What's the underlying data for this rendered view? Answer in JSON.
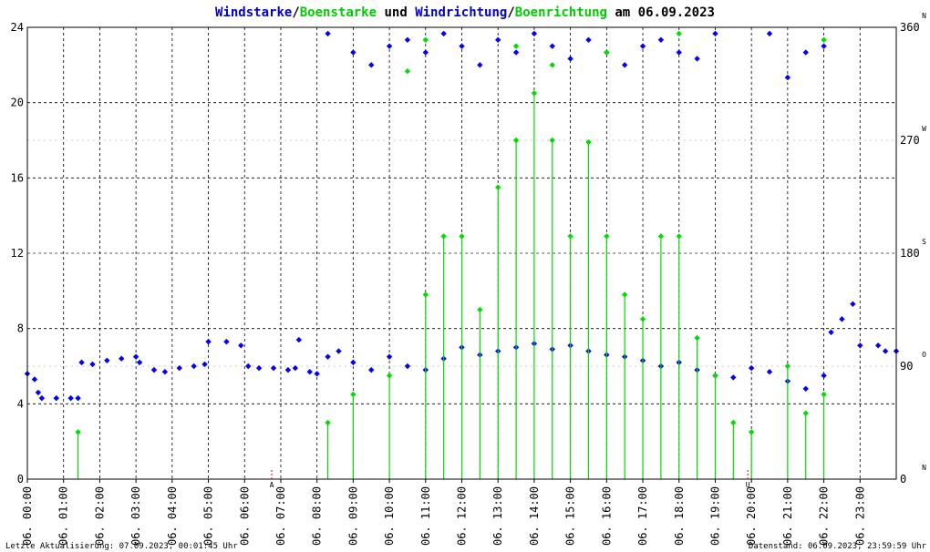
{
  "title": {
    "part1": "Windstarke",
    "sep1": "/",
    "part2": "Boenstarke",
    "part3": " und ",
    "part4": "Windrichtung",
    "sep2": "/",
    "part5": "Boenrichtung",
    "part6": " am 06.09.2023"
  },
  "colors": {
    "wind": "#0000ff",
    "gust": "#00dd00",
    "grid": "#000000",
    "marker": "#ff0000"
  },
  "footer": {
    "left": "Letzte Aktualisierung: 07.09.2023, 00:01:45 Uhr",
    "right": "Datenstand: 06.09.2023, 23:59:59 Uhr"
  },
  "chart_data": {
    "type": "scatter",
    "xlabel": "",
    "ylabel": "",
    "x_ticks": [
      "06. 00:00",
      "06. 01:00",
      "06. 02:00",
      "06. 03:00",
      "06. 04:00",
      "06. 05:00",
      "06. 06:00",
      "06. 07:00",
      "06. 08:00",
      "06. 09:00",
      "06. 10:00",
      "06. 11:00",
      "06. 12:00",
      "06. 13:00",
      "06. 14:00",
      "06. 15:00",
      "06. 16:00",
      "06. 17:00",
      "06. 18:00",
      "06. 19:00",
      "06. 20:00",
      "06. 21:00",
      "06. 22:00",
      "06. 23:00"
    ],
    "y_left_ticks": [
      "0",
      "4",
      "8",
      "12",
      "16",
      "20",
      "24"
    ],
    "y_left_range": [
      0,
      24
    ],
    "y_right_ticks": [
      "0",
      "90",
      "180",
      "270",
      "360"
    ],
    "y_right_range": [
      0,
      360
    ],
    "y_right_dir_labels": [
      "N",
      "O",
      "S",
      "W",
      "N"
    ],
    "sun_markers": [
      "A",
      "U"
    ],
    "sun_markers_hours": [
      6.75,
      19.9
    ],
    "series": [
      {
        "name": "Windstarke",
        "role": "wind_speed",
        "points_hour_value": [
          [
            0.0,
            5.6
          ],
          [
            0.2,
            5.3
          ],
          [
            0.3,
            4.6
          ],
          [
            0.4,
            4.3
          ],
          [
            0.8,
            4.3
          ],
          [
            1.2,
            4.3
          ],
          [
            1.4,
            4.3
          ],
          [
            1.5,
            6.2
          ],
          [
            1.8,
            6.1
          ],
          [
            2.2,
            6.3
          ],
          [
            2.6,
            6.4
          ],
          [
            3.0,
            6.5
          ],
          [
            3.1,
            6.2
          ],
          [
            3.5,
            5.8
          ],
          [
            3.8,
            5.7
          ],
          [
            4.2,
            5.9
          ],
          [
            4.6,
            6.0
          ],
          [
            4.9,
            6.1
          ],
          [
            5.0,
            7.3
          ],
          [
            5.5,
            7.3
          ],
          [
            5.9,
            7.1
          ],
          [
            6.1,
            6.0
          ],
          [
            6.4,
            5.9
          ],
          [
            6.8,
            5.9
          ],
          [
            7.2,
            5.8
          ],
          [
            7.4,
            5.9
          ],
          [
            7.5,
            7.4
          ],
          [
            7.8,
            5.7
          ],
          [
            8.0,
            5.6
          ],
          [
            8.3,
            6.5
          ],
          [
            8.6,
            6.8
          ],
          [
            9.0,
            6.2
          ],
          [
            9.5,
            5.8
          ],
          [
            10.0,
            6.5
          ],
          [
            10.5,
            6.0
          ],
          [
            11.0,
            5.8
          ],
          [
            11.5,
            6.4
          ],
          [
            12.0,
            7.0
          ],
          [
            12.5,
            6.6
          ],
          [
            13.0,
            6.8
          ],
          [
            13.5,
            7.0
          ],
          [
            14.0,
            7.2
          ],
          [
            14.5,
            6.9
          ],
          [
            15.0,
            7.1
          ],
          [
            15.5,
            6.8
          ],
          [
            16.0,
            6.6
          ],
          [
            16.5,
            6.5
          ],
          [
            17.0,
            6.3
          ],
          [
            17.5,
            6.0
          ],
          [
            18.0,
            6.2
          ],
          [
            18.5,
            5.8
          ],
          [
            19.0,
            5.5
          ],
          [
            19.5,
            5.4
          ],
          [
            20.0,
            5.9
          ],
          [
            20.5,
            5.7
          ],
          [
            21.0,
            5.2
          ],
          [
            21.5,
            4.8
          ],
          [
            22.0,
            5.5
          ],
          [
            22.2,
            7.8
          ],
          [
            22.5,
            8.5
          ],
          [
            22.8,
            9.3
          ],
          [
            23.0,
            7.1
          ],
          [
            23.5,
            7.1
          ],
          [
            23.7,
            6.8
          ],
          [
            24.0,
            6.8
          ]
        ]
      },
      {
        "name": "Boenstarke",
        "role": "gust_speed",
        "points_hour_value": [
          [
            1.4,
            2.5
          ],
          [
            8.3,
            3.0
          ],
          [
            9.0,
            4.5
          ],
          [
            10.0,
            5.5
          ],
          [
            11.0,
            9.8
          ],
          [
            11.5,
            12.9
          ],
          [
            12.0,
            12.9
          ],
          [
            12.5,
            9.0
          ],
          [
            13.0,
            15.5
          ],
          [
            13.5,
            18.0
          ],
          [
            14.0,
            20.5
          ],
          [
            14.5,
            18.0
          ],
          [
            15.0,
            12.9
          ],
          [
            15.5,
            17.9
          ],
          [
            16.0,
            12.9
          ],
          [
            16.5,
            9.8
          ],
          [
            17.0,
            8.5
          ],
          [
            17.5,
            12.9
          ],
          [
            18.0,
            12.9
          ],
          [
            18.5,
            7.5
          ],
          [
            19.0,
            5.5
          ],
          [
            19.5,
            3.0
          ],
          [
            20.0,
            2.5
          ],
          [
            21.0,
            6.0
          ],
          [
            21.5,
            3.5
          ],
          [
            22.0,
            4.5
          ]
        ]
      },
      {
        "name": "Windrichtung",
        "role": "wind_direction_deg",
        "points_hour_value": [
          [
            8.3,
            355
          ],
          [
            9.0,
            340
          ],
          [
            9.5,
            330
          ],
          [
            10.0,
            345
          ],
          [
            10.5,
            350
          ],
          [
            11.0,
            340
          ],
          [
            11.5,
            355
          ],
          [
            12.0,
            345
          ],
          [
            12.5,
            330
          ],
          [
            13.0,
            350
          ],
          [
            13.5,
            340
          ],
          [
            14.0,
            355
          ],
          [
            14.5,
            345
          ],
          [
            15.0,
            335
          ],
          [
            15.5,
            350
          ],
          [
            16.0,
            340
          ],
          [
            16.5,
            330
          ],
          [
            17.0,
            345
          ],
          [
            17.5,
            350
          ],
          [
            18.0,
            340
          ],
          [
            18.5,
            335
          ],
          [
            19.0,
            355
          ],
          [
            20.5,
            355
          ],
          [
            21.0,
            320
          ],
          [
            21.5,
            340
          ],
          [
            22.0,
            345
          ]
        ]
      },
      {
        "name": "Boenrichtung",
        "role": "gust_direction_deg",
        "points_hour_value": [
          [
            10.5,
            325
          ],
          [
            11.0,
            350
          ],
          [
            13.5,
            345
          ],
          [
            14.5,
            330
          ],
          [
            16.0,
            340
          ],
          [
            18.0,
            355
          ],
          [
            22.0,
            350
          ]
        ]
      }
    ]
  }
}
